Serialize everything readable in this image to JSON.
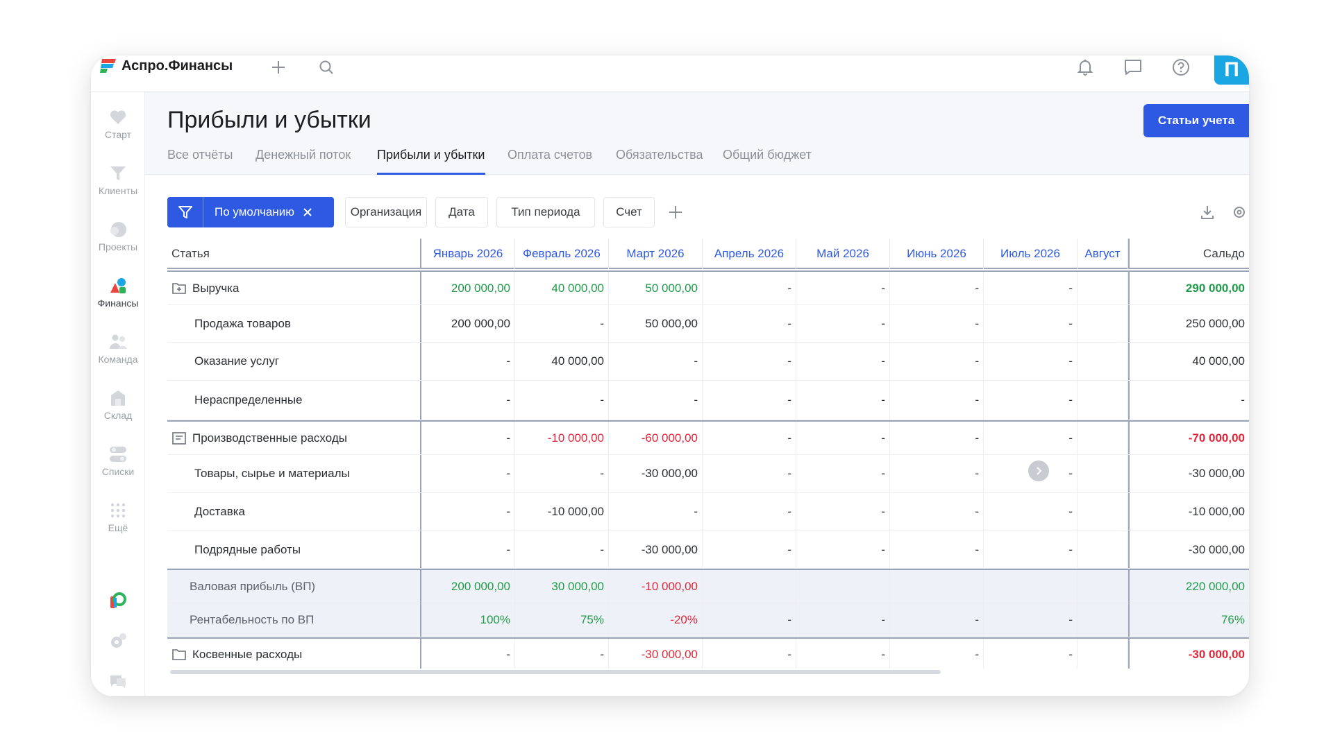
{
  "app": {
    "brand": "Аспро.Финансы",
    "avatar_letter": "П"
  },
  "topbar": {
    "icons": [
      "plus-icon",
      "search-icon",
      "bell-icon",
      "chat-icon",
      "help-icon"
    ]
  },
  "leftnav": {
    "items": [
      {
        "label": "Старт",
        "icon": "heart-icon"
      },
      {
        "label": "Клиенты",
        "icon": "funnel-icon"
      },
      {
        "label": "Проекты",
        "icon": "projects-icon"
      },
      {
        "label": "Финансы",
        "icon": "finance-icon"
      },
      {
        "label": "Команда",
        "icon": "team-icon"
      },
      {
        "label": "Склад",
        "icon": "warehouse-icon"
      },
      {
        "label": "Списки",
        "icon": "toggle-list-icon"
      },
      {
        "label": "Ещё",
        "icon": "more-grid-icon"
      }
    ],
    "active_index": 3,
    "bottom_icons": [
      "partner-logo-icon",
      "settings-icon",
      "support-chat-icon"
    ]
  },
  "page": {
    "title": "Прибыли и убытки",
    "primary_button": "Статьи учета",
    "tabs": [
      "Все отчёты",
      "Денежный поток",
      "Прибыли и убытки",
      "Оплата счетов",
      "Обязательства",
      "Общий бюджет"
    ],
    "active_tab": 2
  },
  "filters": {
    "preset": "По умолчанию",
    "chips": [
      "Организация",
      "Дата",
      "Тип периода",
      "Счет"
    ]
  },
  "table": {
    "columns": [
      "Статья",
      "Январь 2026",
      "Февраль 2026",
      "Март 2026",
      "Апрель 2026",
      "Май 2026",
      "Июнь 2026",
      "Июль 2026",
      "Август",
      "Сальдо"
    ],
    "rows": [
      {
        "label": "Выручка",
        "icon": "folder-plus-icon",
        "values": [
          "200 000,00",
          "40 000,00",
          "50 000,00",
          "-",
          "-",
          "-",
          "-",
          "",
          "290 000,00"
        ],
        "tone": [
          "pos",
          "pos",
          "pos",
          "neu",
          "neu",
          "neu",
          "neu",
          "neu",
          "pos"
        ]
      },
      {
        "label": "Продажа товаров",
        "values": [
          "200 000,00",
          "-",
          "50 000,00",
          "-",
          "-",
          "-",
          "-",
          "",
          "250 000,00"
        ],
        "tone": [
          "neu",
          "neu",
          "neu",
          "neu",
          "neu",
          "neu",
          "neu",
          "neu",
          "neu"
        ]
      },
      {
        "label": "Оказание услуг",
        "values": [
          "-",
          "40 000,00",
          "-",
          "-",
          "-",
          "-",
          "-",
          "",
          "40 000,00"
        ],
        "tone": [
          "neu",
          "neu",
          "neu",
          "neu",
          "neu",
          "neu",
          "neu",
          "neu",
          "neu"
        ]
      },
      {
        "label": "Нераспределенные",
        "values": [
          "-",
          "-",
          "-",
          "-",
          "-",
          "-",
          "-",
          "",
          "-"
        ],
        "tone": [
          "neu",
          "neu",
          "neu",
          "neu",
          "neu",
          "neu",
          "neu",
          "neu",
          "neu"
        ]
      },
      {
        "label": "Производственные расходы",
        "icon": "list-doc-icon",
        "values": [
          "-",
          "-10 000,00",
          "-60 000,00",
          "-",
          "-",
          "-",
          "-",
          "",
          "-70 000,00"
        ],
        "tone": [
          "neu",
          "neg",
          "neg",
          "neu",
          "neu",
          "neu",
          "neu",
          "neu",
          "neg"
        ]
      },
      {
        "label": "Товары, сырье и материалы",
        "values": [
          "-",
          "-",
          "-30 000,00",
          "-",
          "-",
          "-",
          "-",
          "",
          "-30 000,00"
        ],
        "tone": [
          "neu",
          "neu",
          "neu",
          "neu",
          "neu",
          "neu",
          "neu",
          "neu",
          "neu"
        ]
      },
      {
        "label": "Доставка",
        "values": [
          "-",
          "-10 000,00",
          "-",
          "-",
          "-",
          "-",
          "-",
          "",
          "-10 000,00"
        ],
        "tone": [
          "neu",
          "neu",
          "neu",
          "neu",
          "neu",
          "neu",
          "neu",
          "neu",
          "neu"
        ]
      },
      {
        "label": "Подрядные работы",
        "values": [
          "-",
          "-",
          "-30 000,00",
          "-",
          "-",
          "-",
          "-",
          "",
          "-30 000,00"
        ],
        "tone": [
          "neu",
          "neu",
          "neu",
          "neu",
          "neu",
          "neu",
          "neu",
          "neu",
          "neu"
        ]
      },
      {
        "label": "Валовая прибыль (ВП)",
        "values": [
          "200 000,00",
          "30 000,00",
          "-10 000,00",
          "",
          "",
          "",
          "",
          "",
          "220 000,00"
        ],
        "tone": [
          "pos",
          "pos",
          "neg",
          "neu",
          "neu",
          "neu",
          "neu",
          "neu",
          "pos"
        ]
      },
      {
        "label": "Рентабельность по ВП",
        "values": [
          "100%",
          "75%",
          "-20%",
          "-",
          "-",
          "-",
          "-",
          "",
          "76%"
        ],
        "tone": [
          "pos",
          "pos",
          "neg",
          "neu",
          "neu",
          "neu",
          "neu",
          "neu",
          "pos"
        ]
      },
      {
        "label": "Косвенные расходы",
        "icon": "folder-icon",
        "values": [
          "-",
          "-",
          "-30 000,00",
          "-",
          "-",
          "-",
          "-",
          "",
          "-30 000,00"
        ],
        "tone": [
          "neu",
          "neu",
          "neg",
          "neu",
          "neu",
          "neu",
          "neu",
          "neu",
          "neg"
        ]
      }
    ]
  },
  "colors": {
    "accent": "#2d59e3",
    "positive": "#1e9b48",
    "negative": "#e0283b",
    "avatar": "#1aa6e2"
  }
}
